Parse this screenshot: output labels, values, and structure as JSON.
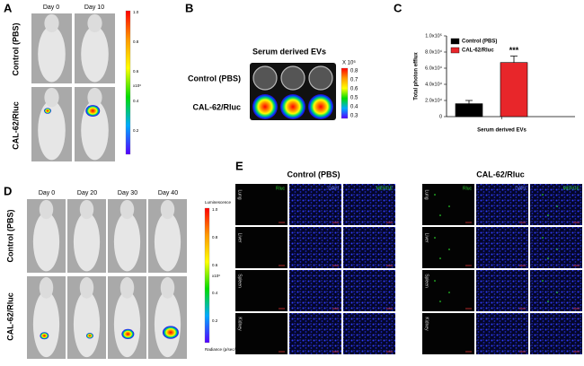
{
  "panels": {
    "A": {
      "label": "A",
      "days": [
        "Day 0",
        "Day 10"
      ],
      "rows": [
        "Control (PBS)",
        "CAL-62/Rluc"
      ],
      "colorbar": {
        "ticks": [
          "1.0",
          "0.8",
          "0.6",
          "0.4",
          "0.2"
        ],
        "unit": "x10⁶"
      }
    },
    "B": {
      "label": "B",
      "title": "Serum derived EVs",
      "rows": [
        "Control (PBS)",
        "CAL-62/Rluc"
      ],
      "colorbar": {
        "unit": "X 10⁶",
        "ticks": [
          "0.8",
          "0.7",
          "0.6",
          "0.5",
          "0.4",
          "0.3"
        ]
      }
    },
    "D": {
      "label": "D",
      "days": [
        "Day 0",
        "Day 20",
        "Day 30",
        "Day 40"
      ],
      "rows": [
        "Control (PBS)",
        "CAL-62/Rluc"
      ],
      "colorbar": {
        "title": "Luminescence",
        "ticks": [
          "1.0",
          "0.8",
          "0.6",
          "0.4",
          "0.2"
        ],
        "unit": "x10⁶",
        "footer": "Radiance (p/sec/cm²/sr)"
      }
    },
    "E": {
      "label": "E",
      "groups": [
        "Control (PBS)",
        "CAL-62/Rluc"
      ],
      "columns": [
        "Rluc",
        "DAPI",
        "MERGE"
      ],
      "rows": [
        "Lung",
        "Liver",
        "Spleen",
        "Kidney"
      ]
    }
  },
  "chart_data": {
    "type": "bar",
    "panel_label": "C",
    "ylabel": "Total photon efflux",
    "xlabel": "Serum derived EVs",
    "categories": [
      "Control (PBS)",
      "CAL-62/Rluc"
    ],
    "values": [
      16000,
      67000
    ],
    "errors": [
      4000,
      8000
    ],
    "colors": [
      "#000000",
      "#e8262a"
    ],
    "significance": "***",
    "legend": "upper left",
    "ylim": [
      0,
      100000
    ],
    "yticks": [
      0,
      {
        "value": 20000,
        "label": "2.0x10⁴"
      },
      {
        "value": 40000,
        "label": "4.0x10⁴"
      },
      {
        "value": 60000,
        "label": "6.0x10⁴"
      },
      {
        "value": 80000,
        "label": "8.0x10⁴"
      },
      {
        "value": 100000,
        "label": "1.0x10⁵"
      }
    ]
  }
}
